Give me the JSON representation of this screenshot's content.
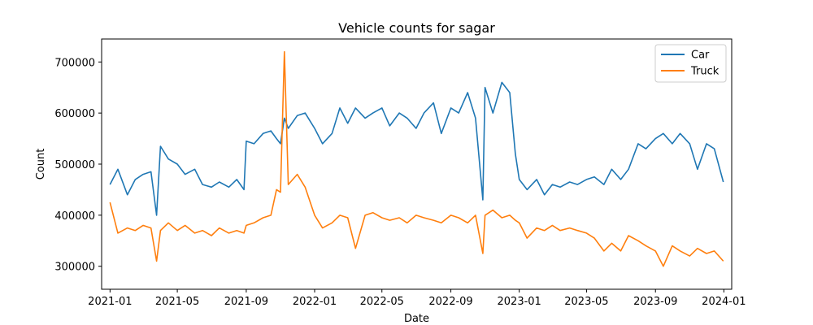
{
  "chart_data": {
    "type": "line",
    "title": "Vehicle counts for sagar",
    "xlabel": "Date",
    "ylabel": "Count",
    "xlim": [
      "2020-12-17",
      "2024-01-15"
    ],
    "ylim": [
      255000,
      745000
    ],
    "x_ticks": [
      "2021-01",
      "2021-05",
      "2021-09",
      "2022-01",
      "2022-05",
      "2022-09",
      "2023-01",
      "2023-05",
      "2023-09",
      "2024-01"
    ],
    "y_ticks": [
      300000,
      400000,
      500000,
      600000,
      700000
    ],
    "y_tick_labels": [
      "300000",
      "400000",
      "500000",
      "600000",
      "700000"
    ],
    "grid": false,
    "legend_position": "top-right",
    "x": [
      "2021-01-01",
      "2021-01-15",
      "2021-02-01",
      "2021-02-15",
      "2021-03-01",
      "2021-03-15",
      "2021-03-25",
      "2021-04-01",
      "2021-04-15",
      "2021-05-01",
      "2021-05-15",
      "2021-06-01",
      "2021-06-15",
      "2021-07-01",
      "2021-07-15",
      "2021-08-01",
      "2021-08-15",
      "2021-08-28",
      "2021-09-01",
      "2021-09-15",
      "2021-10-01",
      "2021-10-15",
      "2021-10-25",
      "2021-11-01",
      "2021-11-08",
      "2021-11-15",
      "2021-12-01",
      "2021-12-15",
      "2022-01-01",
      "2022-01-15",
      "2022-02-01",
      "2022-02-15",
      "2022-03-01",
      "2022-03-15",
      "2022-04-01",
      "2022-04-15",
      "2022-05-01",
      "2022-05-15",
      "2022-06-01",
      "2022-06-15",
      "2022-07-01",
      "2022-07-15",
      "2022-08-01",
      "2022-08-15",
      "2022-09-01",
      "2022-09-15",
      "2022-10-01",
      "2022-10-15",
      "2022-10-28",
      "2022-11-01",
      "2022-11-15",
      "2022-12-01",
      "2022-12-15",
      "2022-12-25",
      "2023-01-01",
      "2023-01-15",
      "2023-02-01",
      "2023-02-15",
      "2023-03-01",
      "2023-03-15",
      "2023-04-01",
      "2023-04-15",
      "2023-05-01",
      "2023-05-15",
      "2023-06-01",
      "2023-06-15",
      "2023-07-01",
      "2023-07-15",
      "2023-08-01",
      "2023-08-15",
      "2023-09-01",
      "2023-09-15",
      "2023-10-01",
      "2023-10-15",
      "2023-11-01",
      "2023-11-15",
      "2023-12-01",
      "2023-12-15",
      "2023-12-31"
    ],
    "series": [
      {
        "name": "Car",
        "color": "#1f77b4",
        "values": [
          460000,
          490000,
          440000,
          470000,
          480000,
          485000,
          400000,
          535000,
          510000,
          500000,
          480000,
          490000,
          460000,
          455000,
          465000,
          455000,
          470000,
          450000,
          545000,
          540000,
          560000,
          565000,
          550000,
          540000,
          590000,
          570000,
          595000,
          600000,
          570000,
          540000,
          560000,
          610000,
          580000,
          610000,
          590000,
          600000,
          610000,
          575000,
          600000,
          590000,
          570000,
          600000,
          620000,
          560000,
          610000,
          600000,
          640000,
          590000,
          430000,
          650000,
          600000,
          660000,
          640000,
          520000,
          470000,
          450000,
          470000,
          440000,
          460000,
          455000,
          465000,
          460000,
          470000,
          475000,
          460000,
          490000,
          470000,
          490000,
          540000,
          530000,
          550000,
          560000,
          540000,
          560000,
          540000,
          490000,
          540000,
          530000,
          465000
        ]
      },
      {
        "name": "Truck",
        "color": "#ff7f0e",
        "values": [
          425000,
          365000,
          375000,
          370000,
          380000,
          375000,
          310000,
          370000,
          385000,
          370000,
          380000,
          365000,
          370000,
          360000,
          375000,
          365000,
          370000,
          365000,
          380000,
          385000,
          395000,
          400000,
          450000,
          445000,
          720000,
          460000,
          480000,
          455000,
          400000,
          375000,
          385000,
          400000,
          395000,
          335000,
          400000,
          405000,
          395000,
          390000,
          395000,
          385000,
          400000,
          395000,
          390000,
          385000,
          400000,
          395000,
          385000,
          400000,
          325000,
          400000,
          410000,
          395000,
          400000,
          390000,
          385000,
          355000,
          375000,
          370000,
          380000,
          370000,
          375000,
          370000,
          365000,
          355000,
          330000,
          345000,
          330000,
          360000,
          350000,
          340000,
          330000,
          300000,
          340000,
          330000,
          320000,
          335000,
          325000,
          330000,
          310000
        ]
      }
    ]
  }
}
